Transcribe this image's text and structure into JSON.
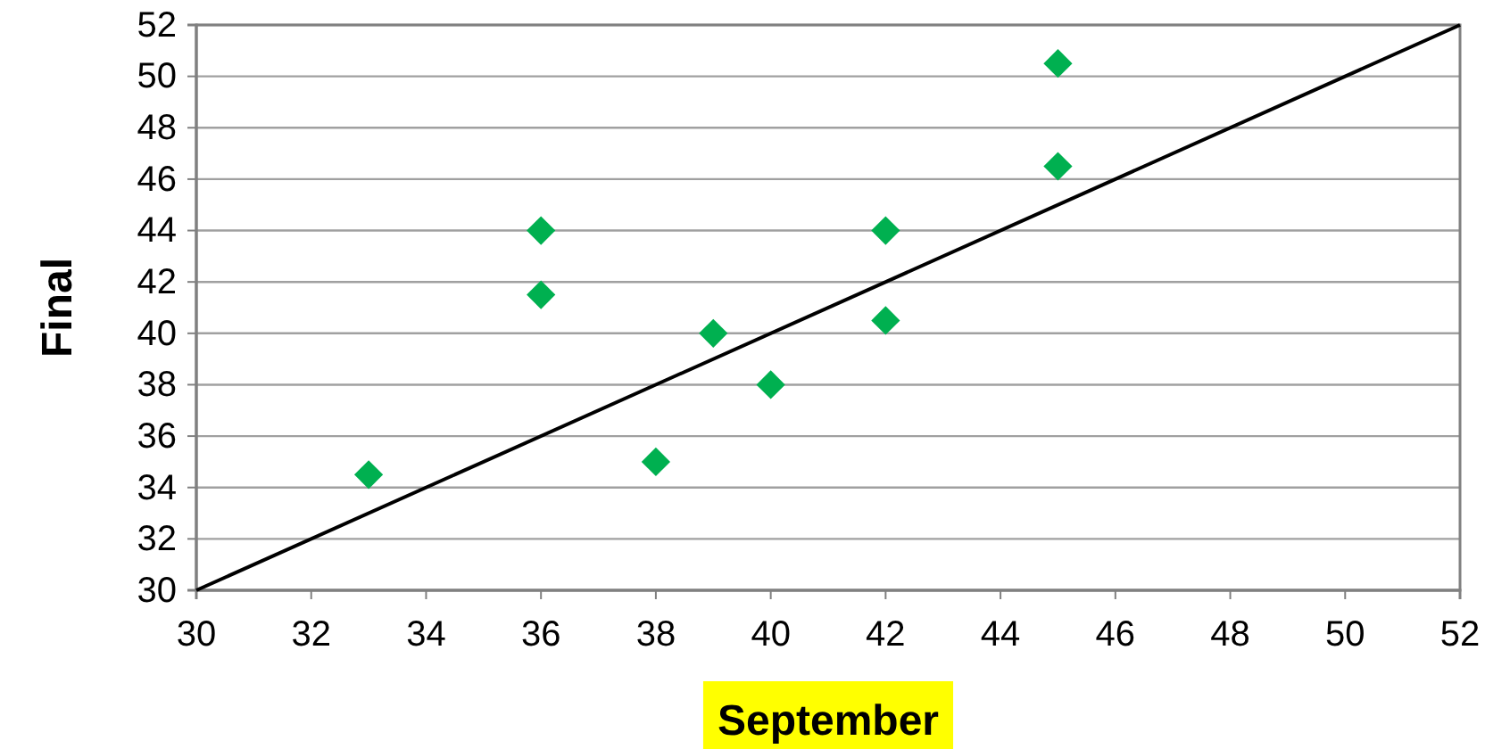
{
  "chart_data": {
    "type": "scatter",
    "xlabel": "September",
    "ylabel": "Final",
    "xlim": [
      30,
      52
    ],
    "ylim": [
      30,
      52
    ],
    "xticks": [
      30,
      32,
      34,
      36,
      38,
      40,
      42,
      44,
      46,
      48,
      50,
      52
    ],
    "yticks": [
      30,
      32,
      34,
      36,
      38,
      40,
      42,
      44,
      46,
      48,
      50,
      52
    ],
    "grid": "y",
    "series": [
      {
        "color": "#00b050",
        "marker": "diamond",
        "x": [
          33,
          36,
          36,
          38,
          39,
          40,
          42,
          42,
          45,
          45
        ],
        "values": [
          34.5,
          44,
          41.5,
          35,
          40,
          38,
          44,
          40.5,
          50.5,
          46.5
        ]
      },
      {
        "type": "line",
        "color": "#000000",
        "marker": "none",
        "line_style": "solid",
        "x": [
          30,
          52
        ],
        "values": [
          30,
          52
        ]
      }
    ]
  }
}
